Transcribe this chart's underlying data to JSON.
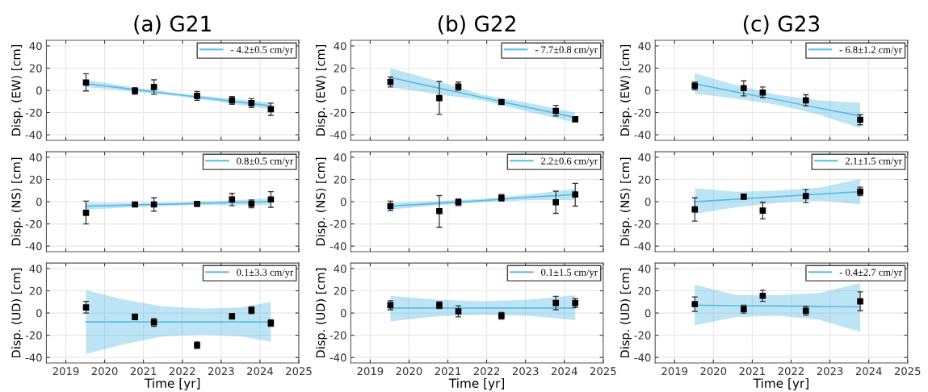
{
  "chart_data": [
    {
      "type": "scatter",
      "title": "(a) G21",
      "ylabel": "Disp. (EW) [cm]",
      "xlim": [
        2018.5,
        2025
      ],
      "ylim": [
        -45,
        45
      ],
      "xticks": [
        2019,
        2020,
        2021,
        2022,
        2023,
        2024,
        2025
      ],
      "yticks": [
        -40,
        -20,
        0,
        20,
        40
      ],
      "tick_labels": "y",
      "grid": true,
      "legend": "top right",
      "series": [
        {
          "marker": "square",
          "color": "#000000",
          "x": [
            2019.52,
            2020.78,
            2021.27,
            2022.38,
            2023.28,
            2023.78,
            2024.28
          ],
          "values": [
            7,
            -0.5,
            3,
            -5,
            -9,
            -11.5,
            -17
          ],
          "errors": [
            [
              -0.5,
              15
            ],
            [
              -3.5,
              2.5
            ],
            [
              -3.5,
              9.5
            ],
            [
              -9,
              -1
            ],
            [
              -12.5,
              -5.5
            ],
            [
              -15.5,
              -7.5
            ],
            [
              -22.5,
              -11.5
            ]
          ]
        },
        {
          "type": "line",
          "name": "- 4.2±0.5 cm/yr",
          "color": "#5bbce4",
          "x": [
            2019.52,
            2020.71,
            2021.9,
            2023.09,
            2024.28
          ],
          "values": [
            6,
            1,
            -4,
            -9,
            -14
          ],
          "lower": [
            3,
            -1,
            -5.5,
            -11,
            -17
          ],
          "upper": [
            9.5,
            3,
            -2.5,
            -7,
            -11
          ]
        }
      ]
    },
    {
      "type": "scatter",
      "title": "(b) G22",
      "ylabel": "Disp. (EW) [cm]",
      "xlim": [
        2018.5,
        2025
      ],
      "ylim": [
        -45,
        45
      ],
      "xticks": [
        2019,
        2020,
        2021,
        2022,
        2023,
        2024,
        2025
      ],
      "yticks": [
        -40,
        -20,
        0,
        20,
        40
      ],
      "tick_labels": "y",
      "grid": true,
      "legend": "top right",
      "series": [
        {
          "marker": "square",
          "color": "#000000",
          "x": [
            2019.52,
            2020.78,
            2021.27,
            2022.38,
            2023.78,
            2024.28
          ],
          "values": [
            7.5,
            -7,
            3.5,
            -10.5,
            -18.5,
            -26
          ],
          "errors": [
            [
              3,
              12
            ],
            [
              -21.5,
              8
            ],
            [
              0,
              7.5
            ],
            [
              -12.5,
              -8.5
            ],
            [
              -23,
              -13.5
            ],
            [
              -28,
              -24
            ]
          ]
        },
        {
          "type": "line",
          "name": "- 7.7±0.8 cm/yr",
          "color": "#5bbce4",
          "x": [
            2019.52,
            2020.71,
            2021.9,
            2023.09,
            2024.28
          ],
          "values": [
            11.5,
            2.5,
            -6.5,
            -15.5,
            -24.5
          ],
          "lower": [
            3,
            -3.5,
            -9,
            -19.5,
            -29
          ],
          "upper": [
            20,
            8.5,
            -4,
            -11.5,
            -20
          ]
        }
      ]
    },
    {
      "type": "scatter",
      "title": "(c) G23",
      "ylabel": "Disp. (EW) [cm]",
      "xlim": [
        2018.5,
        2025
      ],
      "ylim": [
        -45,
        45
      ],
      "xticks": [
        2019,
        2020,
        2021,
        2022,
        2023,
        2024,
        2025
      ],
      "yticks": [
        -40,
        -20,
        0,
        20,
        40
      ],
      "tick_labels": "y",
      "grid": true,
      "legend": "top right",
      "series": [
        {
          "marker": "square",
          "color": "#000000",
          "x": [
            2019.52,
            2020.78,
            2021.27,
            2022.38,
            2023.78
          ],
          "values": [
            4,
            2,
            -2,
            -9,
            -26.5
          ],
          "errors": [
            [
              0.5,
              7.5
            ],
            [
              -5,
              8.5
            ],
            [
              -6.5,
              3
            ],
            [
              -14,
              -4
            ],
            [
              -31,
              -22
            ]
          ]
        },
        {
          "type": "line",
          "name": "- 6.8±1.2 cm/yr",
          "color": "#5bbce4",
          "x": [
            2019.52,
            2020.59,
            2021.65,
            2022.72,
            2023.78
          ],
          "values": [
            6,
            -1.5,
            -8.5,
            -16,
            -23
          ],
          "lower": [
            -3,
            -7.5,
            -13,
            -22,
            -34
          ],
          "upper": [
            15.5,
            4.5,
            -4,
            -9,
            -11
          ]
        }
      ]
    },
    {
      "type": "scatter",
      "ylabel": "Disp. (NS) [cm]",
      "xlim": [
        2018.5,
        2025
      ],
      "ylim": [
        -45,
        45
      ],
      "xticks": [
        2019,
        2020,
        2021,
        2022,
        2023,
        2024,
        2025
      ],
      "yticks": [
        -40,
        -20,
        0,
        20,
        40
      ],
      "tick_labels": "y",
      "grid": true,
      "legend": "top right",
      "series": [
        {
          "marker": "square",
          "color": "#000000",
          "x": [
            2019.52,
            2020.78,
            2021.27,
            2022.38,
            2023.28,
            2023.78,
            2024.28
          ],
          "values": [
            -10,
            -2.5,
            -2.5,
            -2,
            2,
            -2,
            2
          ],
          "errors": [
            [
              -20,
              0.5
            ],
            [
              -4,
              -0.5
            ],
            [
              -8.5,
              3.5
            ],
            [
              -4,
              0
            ],
            [
              -3.5,
              7.5
            ],
            [
              -5.5,
              1.5
            ],
            [
              -5,
              9
            ]
          ]
        },
        {
          "type": "line",
          "name": "0.8±0.5 cm/yr",
          "color": "#5bbce4",
          "x": [
            2019.52,
            2020.71,
            2021.9,
            2023.09,
            2024.28
          ],
          "values": [
            -4,
            -3,
            -2,
            -1,
            0
          ],
          "lower": [
            -7,
            -5,
            -3.5,
            -3,
            -3
          ],
          "upper": [
            -1,
            -1,
            -0.5,
            1,
            3
          ]
        }
      ]
    },
    {
      "type": "scatter",
      "ylabel": "Disp. (NS) [cm]",
      "xlim": [
        2018.5,
        2025
      ],
      "ylim": [
        -45,
        45
      ],
      "xticks": [
        2019,
        2020,
        2021,
        2022,
        2023,
        2024,
        2025
      ],
      "yticks": [
        -40,
        -20,
        0,
        20,
        40
      ],
      "tick_labels": "y",
      "grid": true,
      "legend": "top right",
      "series": [
        {
          "marker": "square",
          "color": "#000000",
          "x": [
            2019.52,
            2020.78,
            2021.27,
            2022.38,
            2023.78,
            2024.28
          ],
          "values": [
            -4,
            -8.5,
            -0.5,
            3.5,
            -0.5,
            6.5
          ],
          "errors": [
            [
              -8,
              0.5
            ],
            [
              -23,
              5.5
            ],
            [
              -3.5,
              2.5
            ],
            [
              0.5,
              6.5
            ],
            [
              -10.5,
              9.5
            ],
            [
              -4,
              16.5
            ]
          ]
        },
        {
          "type": "line",
          "name": "2.2±0.6 cm/yr",
          "color": "#5bbce4",
          "x": [
            2019.52,
            2020.71,
            2021.9,
            2023.09,
            2024.28
          ],
          "values": [
            -4,
            -1.5,
            1,
            4,
            6.5
          ],
          "lower": [
            -7,
            -3.5,
            -0.5,
            1.5,
            1.5
          ],
          "upper": [
            -1,
            0.5,
            2.5,
            6.5,
            11.5
          ]
        }
      ]
    },
    {
      "type": "scatter",
      "ylabel": "Disp. (NS) [cm]",
      "xlim": [
        2018.5,
        2025
      ],
      "ylim": [
        -45,
        45
      ],
      "xticks": [
        2019,
        2020,
        2021,
        2022,
        2023,
        2024,
        2025
      ],
      "yticks": [
        -40,
        -20,
        0,
        20,
        40
      ],
      "tick_labels": "y",
      "grid": true,
      "legend": "top right",
      "series": [
        {
          "marker": "square",
          "color": "#000000",
          "x": [
            2019.52,
            2020.78,
            2021.27,
            2022.38,
            2023.78
          ],
          "values": [
            -7,
            4.5,
            -8,
            5,
            9
          ],
          "errors": [
            [
              -17.5,
              3.5
            ],
            [
              2.5,
              6.5
            ],
            [
              -15.5,
              -0.5
            ],
            [
              -1,
              11
            ],
            [
              5.5,
              13
            ]
          ]
        },
        {
          "type": "line",
          "name": "2.1±1.5 cm/yr",
          "color": "#5bbce4",
          "x": [
            2019.52,
            2020.59,
            2021.65,
            2022.72,
            2023.78
          ],
          "values": [
            0,
            2.3,
            4.5,
            6.8,
            9
          ],
          "lower": [
            -11,
            -5,
            -1,
            1,
            -2.5
          ],
          "upper": [
            12,
            9,
            10,
            12.5,
            20.5
          ]
        }
      ]
    },
    {
      "type": "scatter",
      "xlabel": "Time [yr]",
      "ylabel": "Disp. (UD) [cm]",
      "xlim": [
        2018.5,
        2025
      ],
      "ylim": [
        -45,
        45
      ],
      "xticks": [
        2019,
        2020,
        2021,
        2022,
        2023,
        2024,
        2025
      ],
      "yticks": [
        -40,
        -20,
        0,
        20,
        40
      ],
      "grid": true,
      "legend": "top right",
      "series": [
        {
          "marker": "square",
          "color": "#000000",
          "x": [
            2019.52,
            2020.78,
            2021.27,
            2022.38,
            2023.28,
            2023.78,
            2024.28
          ],
          "values": [
            5,
            -3.5,
            -8.5,
            -29,
            -3,
            2.5,
            -9
          ],
          "errors": [
            [
              0,
              10.5
            ],
            [
              -6,
              -1
            ],
            [
              -12,
              -5
            ],
            [
              -32,
              -26
            ],
            [
              -5.5,
              -0.5
            ],
            [
              -0.5,
              5.5
            ],
            [
              -12,
              -6
            ]
          ]
        },
        {
          "type": "line",
          "name": "0.1±3.3 cm/yr",
          "color": "#5bbce4",
          "x": [
            2019.52,
            2020.5,
            2021.5,
            2022.5,
            2023.5,
            2024.28
          ],
          "values": [
            -8,
            -8,
            -8,
            -8,
            -8,
            -8
          ],
          "lower": [
            -37,
            -28,
            -21,
            -19.5,
            -21,
            -26
          ],
          "upper": [
            20.5,
            12,
            6,
            4,
            5,
            10
          ]
        }
      ]
    },
    {
      "type": "scatter",
      "xlabel": "Time [yr]",
      "ylabel": "Disp. (UD) [cm]",
      "xlim": [
        2018.5,
        2025
      ],
      "ylim": [
        -45,
        45
      ],
      "xticks": [
        2019,
        2020,
        2021,
        2022,
        2023,
        2024,
        2025
      ],
      "yticks": [
        -40,
        -20,
        0,
        20,
        40
      ],
      "grid": true,
      "legend": "top right",
      "series": [
        {
          "marker": "square",
          "color": "#000000",
          "x": [
            2019.52,
            2020.78,
            2021.27,
            2022.38,
            2023.78,
            2024.28
          ],
          "values": [
            7,
            7,
            1.5,
            -2.5,
            9,
            9
          ],
          "errors": [
            [
              3,
              11
            ],
            [
              4,
              10
            ],
            [
              -3.5,
              6.5
            ],
            [
              -5.5,
              0.5
            ],
            [
              3,
              15
            ],
            [
              5,
              13
            ]
          ]
        },
        {
          "type": "line",
          "name": "0.1±1.5 cm/yr",
          "color": "#5bbce4",
          "x": [
            2019.52,
            2020.71,
            2021.9,
            2023.09,
            2024.28
          ],
          "values": [
            4.5,
            4.5,
            4.5,
            4.5,
            4.5
          ],
          "lower": [
            -7.5,
            -3,
            -1.5,
            -2.5,
            -6.5
          ],
          "upper": [
            15.5,
            12,
            10.5,
            12,
            16
          ]
        }
      ]
    },
    {
      "type": "scatter",
      "xlabel": "Time [yr]",
      "ylabel": "Disp. (UD) [cm]",
      "xlim": [
        2018.5,
        2025
      ],
      "ylim": [
        -45,
        45
      ],
      "xticks": [
        2019,
        2020,
        2021,
        2022,
        2023,
        2024,
        2025
      ],
      "yticks": [
        -40,
        -20,
        0,
        20,
        40
      ],
      "grid": true,
      "legend": "top right",
      "series": [
        {
          "marker": "square",
          "color": "#000000",
          "x": [
            2019.52,
            2020.78,
            2021.27,
            2022.38,
            2023.78
          ],
          "values": [
            8,
            3.5,
            15.5,
            2,
            10.5
          ],
          "errors": [
            [
              1.5,
              14.5
            ],
            [
              0,
              7
            ],
            [
              10.5,
              20.5
            ],
            [
              -2,
              6
            ],
            [
              2,
              19
            ]
          ]
        },
        {
          "type": "line",
          "name": "- 0.4±2.7 cm/yr",
          "color": "#5bbce4",
          "x": [
            2019.52,
            2020.59,
            2021.65,
            2022.72,
            2023.78
          ],
          "values": [
            7,
            6.6,
            6.3,
            5.9,
            5.5
          ],
          "lower": [
            -11,
            -3.5,
            -2.5,
            -6,
            -17
          ],
          "upper": [
            25.5,
            16,
            16,
            18,
            27
          ]
        }
      ]
    }
  ]
}
